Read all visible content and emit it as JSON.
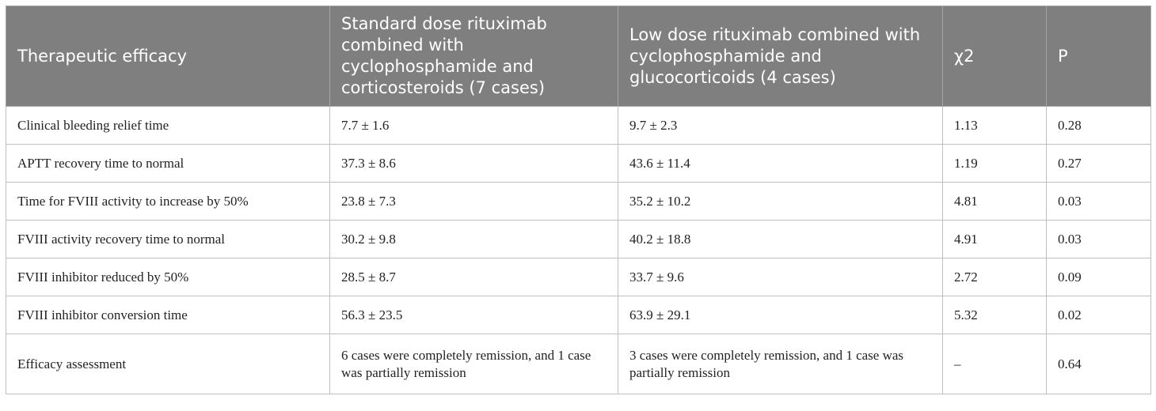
{
  "table": {
    "headers": [
      "Therapeutic efficacy",
      "Standard dose rituximab combined with cyclophosphamide and corticosteroids (7 cases)",
      "Low dose rituximab combined with cyclophosphamide and glucocorticoids (4 cases)",
      "χ2",
      "P"
    ],
    "rows": [
      [
        "Clinical bleeding relief time",
        "7.7 ± 1.6",
        "9.7 ± 2.3",
        "1.13",
        "0.28"
      ],
      [
        "APTT recovery time to normal",
        "37.3 ± 8.6",
        "43.6 ± 11.4",
        "1.19",
        "0.27"
      ],
      [
        "Time for FVIII activity to increase by 50%",
        "23.8 ± 7.3",
        "35.2 ± 10.2",
        "4.81",
        "0.03"
      ],
      [
        "FVIII activity recovery time to normal",
        "30.2 ± 9.8",
        "40.2 ± 18.8",
        "4.91",
        "0.03"
      ],
      [
        "FVIII inhibitor reduced by 50%",
        "28.5 ± 8.7",
        "33.7 ± 9.6",
        "2.72",
        "0.09"
      ],
      [
        "FVIII inhibitor conversion time",
        "56.3 ± 23.5",
        "63.9 ± 29.1",
        "5.32",
        "0.02"
      ],
      [
        "Efficacy assessment",
        "6 cases were completely remission, and 1 case was partially remission",
        "3 cases were completely remission, and 1 case was partially remission",
        "–",
        "0.64"
      ]
    ]
  }
}
